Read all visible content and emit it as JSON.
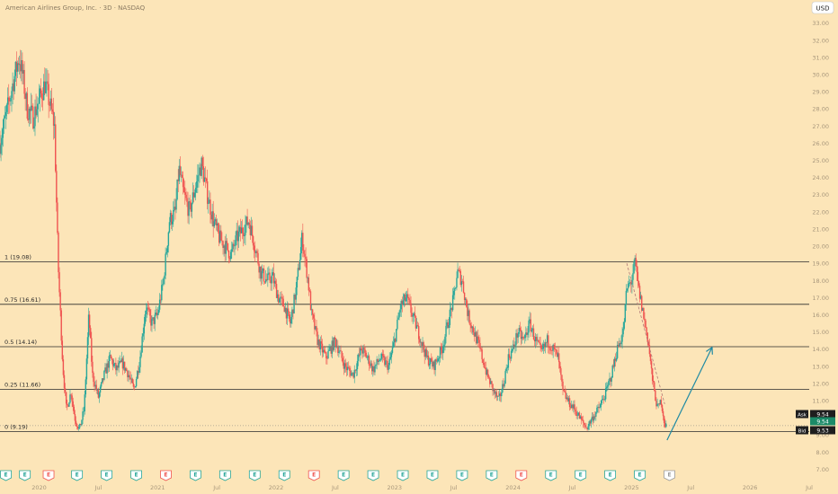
{
  "header": {
    "title": "American Airlines Group, Inc. · 3D · NASDAQ",
    "currency": "USD"
  },
  "chart_data": {
    "type": "candlestick",
    "title": "American Airlines Group, Inc. · 3D · NASDAQ",
    "ylim": [
      6.5,
      33.4
    ],
    "y_ticks": [
      7.0,
      8.0,
      9.0,
      10.0,
      11.0,
      12.0,
      13.0,
      14.0,
      15.0,
      16.0,
      17.0,
      18.0,
      19.0,
      20.0,
      21.0,
      22.0,
      23.0,
      24.0,
      25.0,
      26.0,
      27.0,
      28.0,
      29.0,
      30.0,
      31.0,
      32.0,
      33.0
    ],
    "x_ticks": [
      {
        "label": "2020",
        "t": 2020.0
      },
      {
        "label": "Jul",
        "t": 2020.5
      },
      {
        "label": "2021",
        "t": 2021.0
      },
      {
        "label": "Jul",
        "t": 2021.5
      },
      {
        "label": "2022",
        "t": 2022.0
      },
      {
        "label": "Jul",
        "t": 2022.5
      },
      {
        "label": "2023",
        "t": 2023.0
      },
      {
        "label": "Jul",
        "t": 2023.5
      },
      {
        "label": "2024",
        "t": 2024.0
      },
      {
        "label": "Jul",
        "t": 2024.5
      },
      {
        "label": "2025",
        "t": 2025.0
      },
      {
        "label": "Jul",
        "t": 2025.5
      },
      {
        "label": "2026",
        "t": 2026.0
      },
      {
        "label": "Jul",
        "t": 2026.5
      }
    ],
    "xlim": [
      2019.67,
      2026.5
    ],
    "price_path": [
      [
        2019.67,
        26.0
      ],
      [
        2019.78,
        29.5
      ],
      [
        2019.83,
        31.0
      ],
      [
        2019.86,
        30.0
      ],
      [
        2019.9,
        28.0
      ],
      [
        2019.95,
        27.5
      ],
      [
        2020.0,
        28.5
      ],
      [
        2020.05,
        29.5
      ],
      [
        2020.1,
        28.0
      ],
      [
        2020.13,
        27.0
      ],
      [
        2020.16,
        19.0
      ],
      [
        2020.2,
        13.0
      ],
      [
        2020.23,
        10.5
      ],
      [
        2020.27,
        11.5
      ],
      [
        2020.3,
        10.0
      ],
      [
        2020.34,
        9.3
      ],
      [
        2020.38,
        10.5
      ],
      [
        2020.42,
        16.0
      ],
      [
        2020.45,
        12.5
      ],
      [
        2020.5,
        11.2
      ],
      [
        2020.55,
        12.5
      ],
      [
        2020.6,
        13.5
      ],
      [
        2020.65,
        12.8
      ],
      [
        2020.7,
        13.2
      ],
      [
        2020.75,
        12.6
      ],
      [
        2020.8,
        11.6
      ],
      [
        2020.85,
        13.4
      ],
      [
        2020.9,
        16.5
      ],
      [
        2020.95,
        15.5
      ],
      [
        2021.0,
        16.0
      ],
      [
        2021.05,
        18.0
      ],
      [
        2021.1,
        21.5
      ],
      [
        2021.15,
        22.0
      ],
      [
        2021.18,
        24.5
      ],
      [
        2021.22,
        23.0
      ],
      [
        2021.27,
        22.0
      ],
      [
        2021.32,
        23.5
      ],
      [
        2021.37,
        24.8
      ],
      [
        2021.42,
        23.0
      ],
      [
        2021.47,
        21.5
      ],
      [
        2021.52,
        20.5
      ],
      [
        2021.57,
        20.0
      ],
      [
        2021.62,
        19.5
      ],
      [
        2021.67,
        20.5
      ],
      [
        2021.72,
        21.0
      ],
      [
        2021.77,
        21.5
      ],
      [
        2021.82,
        20.0
      ],
      [
        2021.87,
        18.5
      ],
      [
        2021.92,
        18.0
      ],
      [
        2021.97,
        18.2
      ],
      [
        2022.02,
        17.0
      ],
      [
        2022.07,
        16.5
      ],
      [
        2022.12,
        15.5
      ],
      [
        2022.17,
        17.5
      ],
      [
        2022.22,
        20.5
      ],
      [
        2022.27,
        18.0
      ],
      [
        2022.3,
        16.0
      ],
      [
        2022.35,
        14.5
      ],
      [
        2022.42,
        13.5
      ],
      [
        2022.5,
        14.5
      ],
      [
        2022.58,
        13.0
      ],
      [
        2022.65,
        12.5
      ],
      [
        2022.72,
        14.0
      ],
      [
        2022.77,
        13.5
      ],
      [
        2022.82,
        12.8
      ],
      [
        2022.88,
        13.5
      ],
      [
        2022.95,
        13.0
      ],
      [
        2023.0,
        14.5
      ],
      [
        2023.05,
        16.5
      ],
      [
        2023.1,
        17.0
      ],
      [
        2023.15,
        16.0
      ],
      [
        2023.2,
        15.0
      ],
      [
        2023.27,
        13.5
      ],
      [
        2023.33,
        13.0
      ],
      [
        2023.4,
        14.0
      ],
      [
        2023.45,
        15.5
      ],
      [
        2023.5,
        17.0
      ],
      [
        2023.53,
        18.5
      ],
      [
        2023.57,
        18.0
      ],
      [
        2023.62,
        16.0
      ],
      [
        2023.67,
        15.0
      ],
      [
        2023.72,
        14.0
      ],
      [
        2023.78,
        12.5
      ],
      [
        2023.84,
        11.5
      ],
      [
        2023.88,
        11.0
      ],
      [
        2023.92,
        12.0
      ],
      [
        2023.96,
        13.5
      ],
      [
        2024.0,
        14.0
      ],
      [
        2024.04,
        15.0
      ],
      [
        2024.09,
        14.5
      ],
      [
        2024.14,
        15.5
      ],
      [
        2024.19,
        14.5
      ],
      [
        2024.24,
        13.8
      ],
      [
        2024.29,
        14.5
      ],
      [
        2024.34,
        14.0
      ],
      [
        2024.38,
        13.5
      ],
      [
        2024.42,
        11.5
      ],
      [
        2024.47,
        10.9
      ],
      [
        2024.52,
        10.5
      ],
      [
        2024.58,
        9.8
      ],
      [
        2024.62,
        9.4
      ],
      [
        2024.67,
        10.0
      ],
      [
        2024.73,
        10.6
      ],
      [
        2024.78,
        11.4
      ],
      [
        2024.83,
        12.5
      ],
      [
        2024.88,
        14.0
      ],
      [
        2024.93,
        15.0
      ],
      [
        2024.96,
        17.5
      ],
      [
        2025.0,
        18.0
      ],
      [
        2025.03,
        19.0
      ],
      [
        2025.06,
        17.5
      ],
      [
        2025.1,
        16.0
      ],
      [
        2025.14,
        14.5
      ],
      [
        2025.18,
        12.0
      ],
      [
        2025.22,
        10.5
      ],
      [
        2025.25,
        11.0
      ],
      [
        2025.28,
        9.6
      ],
      [
        2025.3,
        9.5
      ]
    ],
    "fib_levels": [
      {
        "label": "1 (19.08)",
        "value": 19.08
      },
      {
        "label": "0.75 (16.61)",
        "value": 16.61
      },
      {
        "label": "0.5 (14.14)",
        "value": 14.14
      },
      {
        "label": "0.25 (11.66)",
        "value": 11.66
      },
      {
        "label": "0 (9.19)",
        "value": 9.19
      }
    ],
    "projection_arrow": {
      "from": [
        2025.3,
        8.7
      ],
      "to": [
        2025.68,
        14.1
      ]
    },
    "dashed_trend": {
      "from": [
        2024.96,
        19.0
      ],
      "to": [
        2025.28,
        10.8
      ]
    },
    "quotes": {
      "ask_label": "Ask",
      "ask": "9.54",
      "last": "9.54",
      "bid_label": "Bid",
      "bid": "9.53"
    },
    "events": [
      {
        "t": 2019.72,
        "label": "E",
        "kind": "earnings"
      },
      {
        "t": 2019.88,
        "label": "E",
        "kind": "earnings"
      },
      {
        "t": 2020.08,
        "label": "E",
        "kind": "earnings-miss"
      },
      {
        "t": 2020.32,
        "label": "E",
        "kind": "earnings"
      },
      {
        "t": 2020.57,
        "label": "E",
        "kind": "earnings"
      },
      {
        "t": 2020.82,
        "label": "E",
        "kind": "earnings"
      },
      {
        "t": 2021.07,
        "label": "E",
        "kind": "earnings-miss"
      },
      {
        "t": 2021.32,
        "label": "E",
        "kind": "earnings"
      },
      {
        "t": 2021.57,
        "label": "E",
        "kind": "earnings"
      },
      {
        "t": 2021.82,
        "label": "E",
        "kind": "earnings"
      },
      {
        "t": 2022.07,
        "label": "E",
        "kind": "earnings"
      },
      {
        "t": 2022.32,
        "label": "E",
        "kind": "earnings-miss"
      },
      {
        "t": 2022.57,
        "label": "E",
        "kind": "earnings"
      },
      {
        "t": 2022.82,
        "label": "E",
        "kind": "earnings"
      },
      {
        "t": 2023.07,
        "label": "E",
        "kind": "earnings"
      },
      {
        "t": 2023.32,
        "label": "E",
        "kind": "earnings"
      },
      {
        "t": 2023.57,
        "label": "E",
        "kind": "earnings"
      },
      {
        "t": 2023.82,
        "label": "E",
        "kind": "earnings"
      },
      {
        "t": 2024.07,
        "label": "E",
        "kind": "earnings-miss"
      },
      {
        "t": 2024.32,
        "label": "E",
        "kind": "earnings"
      },
      {
        "t": 2024.57,
        "label": "E",
        "kind": "earnings"
      },
      {
        "t": 2024.82,
        "label": "E",
        "kind": "earnings"
      },
      {
        "t": 2025.07,
        "label": "E",
        "kind": "earnings"
      },
      {
        "t": 2025.32,
        "label": "E",
        "kind": "upcoming"
      }
    ],
    "colors": {
      "up": "#26a69a",
      "down": "#ef5350",
      "background": "#fce5b8",
      "fib_line": "#2a2a2a",
      "arrow": "#1f8aa3",
      "label_dark": "#1e1e1e",
      "last_price": "#1b8a68"
    }
  }
}
